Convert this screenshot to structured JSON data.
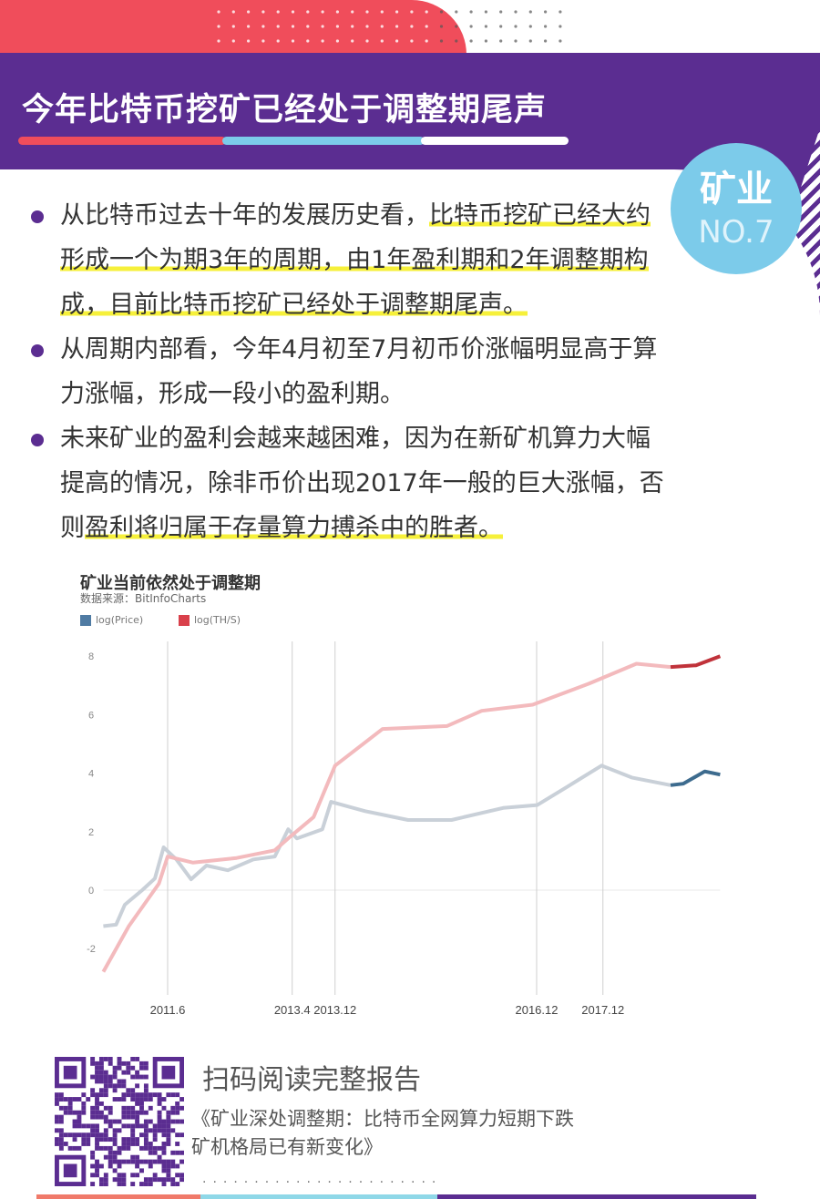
{
  "header": {
    "title": "今年比特币挖矿已经处于调整期尾声",
    "badge_category": "矿业",
    "badge_number": "NO.7"
  },
  "colors": {
    "purple": "#5b2d91",
    "red": "#f04d5b",
    "blue": "#7ccbea",
    "highlight": "#f6f03a"
  },
  "bullets": [
    {
      "segments": [
        {
          "text": "从比特币过去十年的发展历史看，",
          "highlight": false
        },
        {
          "text": "比特币挖矿已经大约形成一个为期3年的周期，由1年盈利期和2年调整期构成，目前比特币挖矿已经处于调整期尾声。",
          "highlight": true
        }
      ]
    },
    {
      "segments": [
        {
          "text": "从周期内部看，今年4月初至7月初币价涨幅明显高于算力涨幅，形成一段小的盈利期。",
          "highlight": false
        }
      ]
    },
    {
      "segments": [
        {
          "text": "未来矿业的盈利会越来越困难，因为在新矿机算力大幅提高的情况，除非币价出现2017年一般的巨大涨幅，否则",
          "highlight": false
        },
        {
          "text": "盈利将归属于存量算力搏杀中的胜者。",
          "highlight": true
        }
      ]
    }
  ],
  "chart_data": {
    "type": "line",
    "title": "矿业当前依然处于调整期",
    "subtitle": "数据来源：BitInfoCharts",
    "legend_position": "top-left",
    "xlim": [
      2010.46,
      2019.67
    ],
    "ylim": [
      -3,
      8.5
    ],
    "yticks": [
      -2,
      0,
      2,
      4,
      6,
      8
    ],
    "grid": "zero line only",
    "markers": [
      {
        "label": "2011.6",
        "x": 2011.42
      },
      {
        "label": "2013.4",
        "x": 2013.28
      },
      {
        "label": "2013.12",
        "x": 2013.92
      },
      {
        "label": "2016.12",
        "x": 2016.93
      },
      {
        "label": "2017.12",
        "x": 2017.92
      }
    ],
    "emphasis_from": 2018.93,
    "series": [
      {
        "name": "log(Price)",
        "color": "#3d6b8e",
        "faded_color": "#c9d0d8",
        "x": [
          2010.46,
          2010.65,
          2010.78,
          2011.04,
          2011.23,
          2011.36,
          2011.55,
          2011.77,
          2012.0,
          2012.32,
          2012.7,
          2013.02,
          2013.22,
          2013.35,
          2013.73,
          2013.86,
          2014.37,
          2015.01,
          2015.66,
          2016.43,
          2016.94,
          2017.39,
          2017.9,
          2018.35,
          2018.93,
          2019.12,
          2019.44,
          2019.67
        ],
        "y": [
          -1.23,
          -1.18,
          -0.5,
          0.0,
          0.4,
          1.46,
          1.05,
          0.37,
          0.84,
          0.68,
          1.05,
          1.15,
          2.08,
          1.77,
          2.08,
          3.02,
          2.7,
          2.4,
          2.4,
          2.81,
          2.91,
          3.54,
          4.26,
          3.85,
          3.59,
          3.64,
          4.06,
          3.95
        ]
      },
      {
        "name": "log(TH/S)",
        "color": "#c0323a",
        "faded_color": "#f3babd",
        "x": [
          2010.46,
          2010.84,
          2011.29,
          2011.42,
          2011.8,
          2012.45,
          2013.02,
          2013.22,
          2013.6,
          2013.92,
          2014.63,
          2015.59,
          2016.11,
          2016.87,
          2017.71,
          2018.42,
          2018.93,
          2019.31,
          2019.67
        ],
        "y": [
          -2.79,
          -1.23,
          0.22,
          1.15,
          0.94,
          1.1,
          1.36,
          1.77,
          2.5,
          4.26,
          5.51,
          5.61,
          6.13,
          6.34,
          7.06,
          7.74,
          7.63,
          7.69,
          8.0
        ]
      }
    ]
  },
  "footer": {
    "scan_label": "扫码阅读完整报告",
    "article_line1": "《矿业深处调整期：比特币全网算力短期下跌",
    "article_line2": "矿机格局已有新变化》",
    "dots": "·······················"
  }
}
